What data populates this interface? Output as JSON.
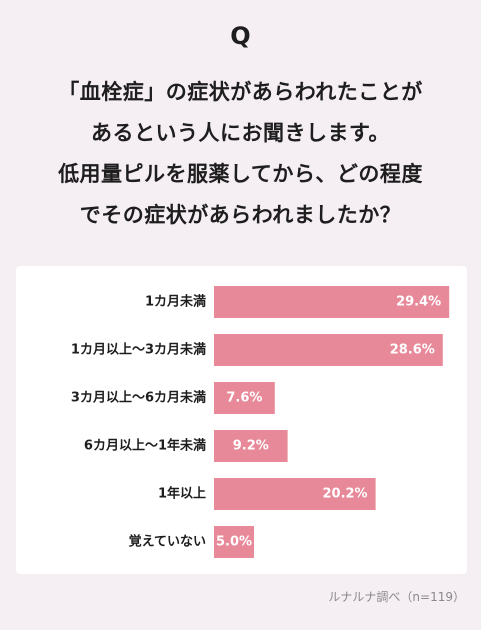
{
  "question": {
    "mark": "Q",
    "lines": [
      "「血栓症」の症状があらわれたことが",
      "あるという人にお聞きします。",
      "低用量ピルを服薬してから、どの程度",
      "でその症状があらわれましたか？"
    ]
  },
  "source": "ルナルナ調べ（n=119）",
  "chart_data": {
    "type": "bar",
    "orientation": "horizontal",
    "categories": [
      "1カ月未満",
      "1カ月以上〜3カ月未満",
      "3カ月以上〜6カ月未満",
      "6カ月以上〜1年未満",
      "1年以上",
      "覚えていない"
    ],
    "values": [
      29.4,
      28.6,
      7.6,
      9.2,
      20.2,
      5.0
    ],
    "labels": [
      "29.4%",
      "28.6%",
      "7.6%",
      "9.2%",
      "20.2%",
      "5.0%"
    ],
    "xlim": [
      0,
      30
    ],
    "title": "",
    "xlabel": "",
    "ylabel": "",
    "grid": false,
    "bar_color": "#e8899a",
    "value_label_color": "#ffffff"
  }
}
